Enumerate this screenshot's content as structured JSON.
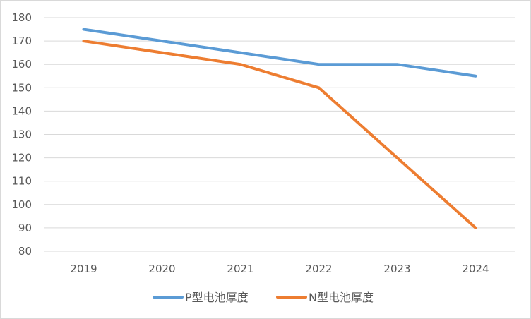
{
  "chart_data": {
    "type": "line",
    "title": "",
    "xlabel": "",
    "ylabel": "",
    "categories": [
      "2019",
      "2020",
      "2021",
      "2022",
      "2023",
      "2024"
    ],
    "ylim": [
      80,
      180
    ],
    "yticks": [
      "80",
      "90",
      "100",
      "110",
      "120",
      "130",
      "140",
      "150",
      "160",
      "170",
      "180"
    ],
    "grid": true,
    "legend_position": "bottom",
    "series": [
      {
        "name": "P型电池厚度",
        "color": "#5b9bd5",
        "values": [
          175,
          170,
          165,
          160,
          160,
          155
        ]
      },
      {
        "name": "N型电池厚度",
        "color": "#ed7d31",
        "values": [
          170,
          165,
          160,
          150,
          120,
          90
        ]
      }
    ]
  }
}
